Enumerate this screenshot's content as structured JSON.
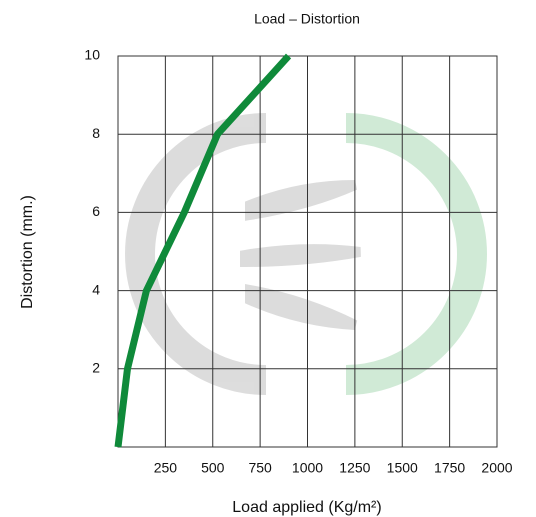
{
  "chart_data": {
    "type": "line",
    "title": "Load – Distortion",
    "x_label": "Load applied  (Kg/m²)",
    "y_label": "Distortion (mm.)",
    "x": [
      0,
      50,
      150,
      350,
      525,
      900
    ],
    "series": [
      {
        "color": "#0f8a3a",
        "values": [
          0,
          2,
          4,
          6,
          8,
          10
        ]
      }
    ],
    "xlim": [
      0,
      2000
    ],
    "xticks": [
      250,
      500,
      750,
      1000,
      1250,
      1500,
      1750,
      2000
    ],
    "ylim": [
      0,
      10
    ],
    "yticks": [
      2,
      4,
      6,
      8,
      10
    ],
    "grid": true
  }
}
